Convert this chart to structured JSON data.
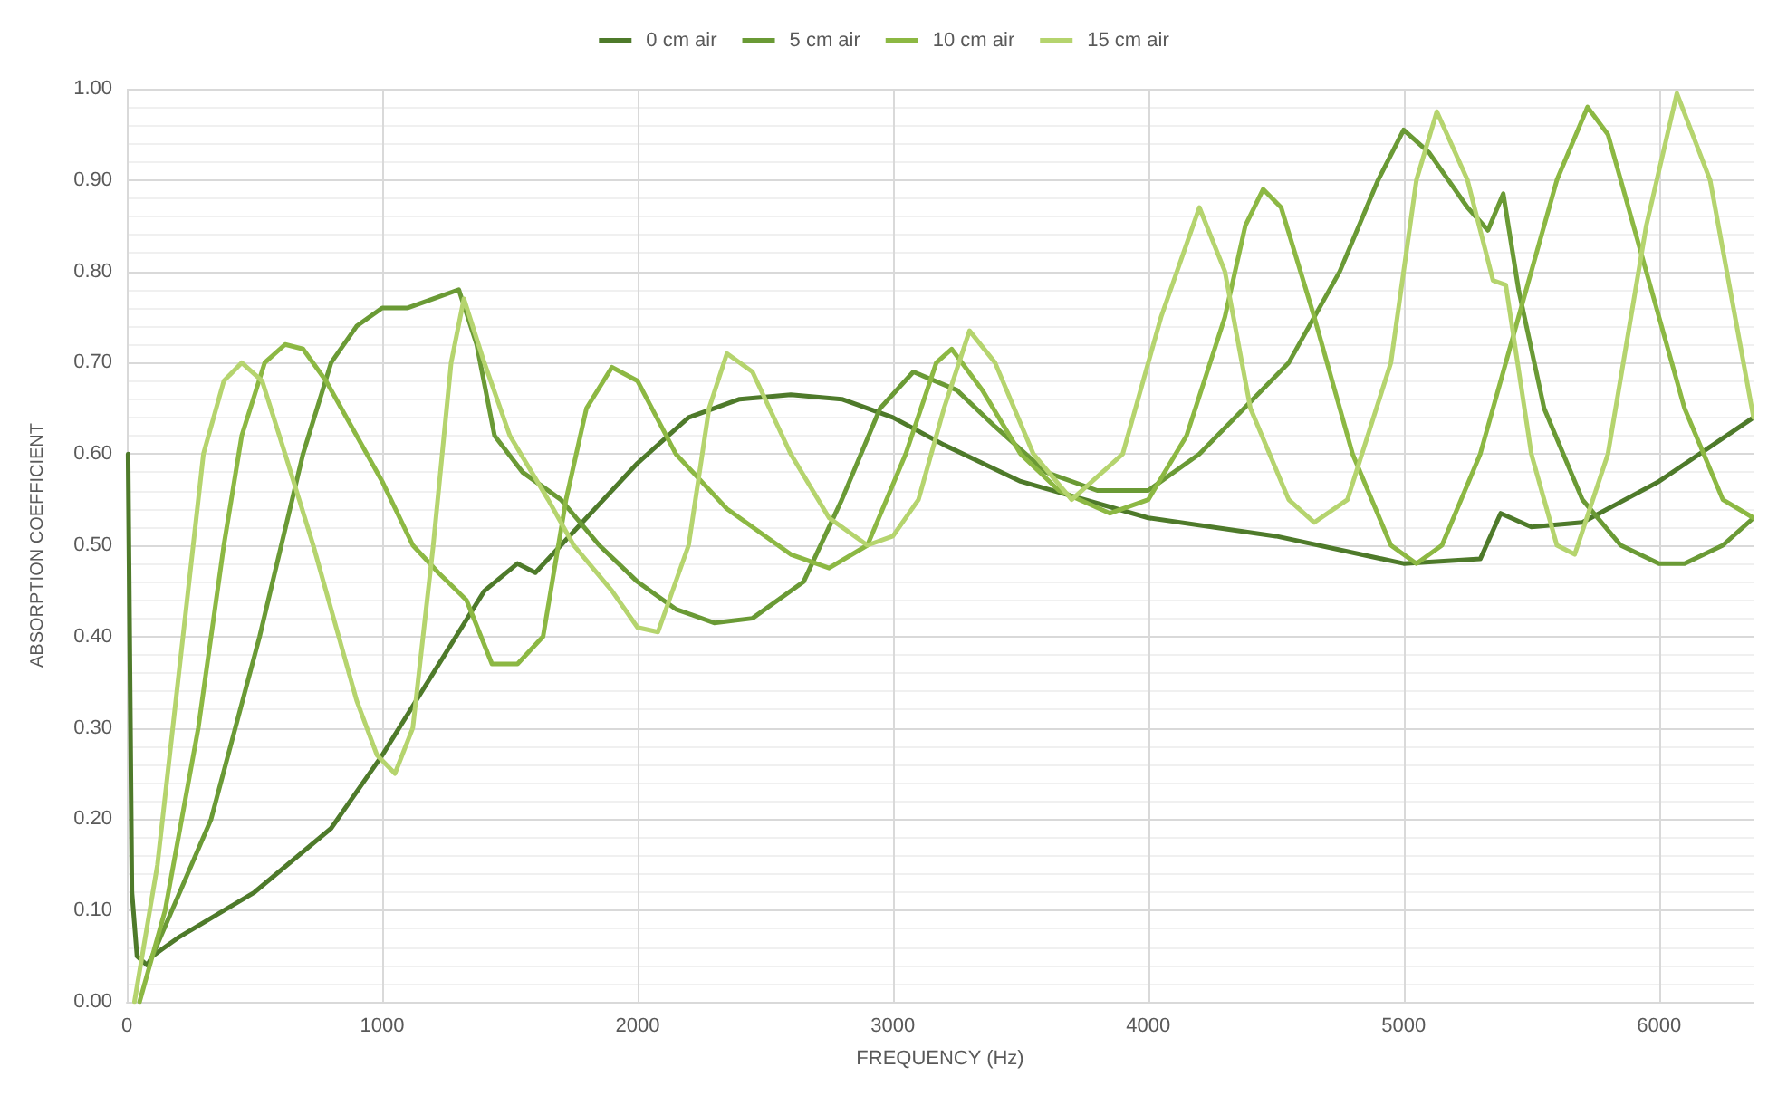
{
  "chart_data": {
    "type": "line",
    "xlabel": "FREQUENCY (Hz)",
    "ylabel": "ABSORPTION COEFFICIENT",
    "xlim": [
      0,
      6370
    ],
    "xticks": [
      0,
      1000,
      2000,
      3000,
      4000,
      5000,
      6000
    ],
    "ylim": [
      0,
      1
    ],
    "yticks": [
      {
        "value": 0,
        "label": "0.00"
      },
      {
        "value": 0.1,
        "label": "0.10"
      },
      {
        "value": 0.2,
        "label": "0.20"
      },
      {
        "value": 0.3,
        "label": "0.30"
      },
      {
        "value": 0.4,
        "label": "0.40"
      },
      {
        "value": 0.5,
        "label": "0.50"
      },
      {
        "value": 0.6,
        "label": "0.60"
      },
      {
        "value": 0.7,
        "label": "0.70"
      },
      {
        "value": 0.8,
        "label": "0.80"
      },
      {
        "value": 0.9,
        "label": "0.90"
      },
      {
        "value": 1,
        "label": "1.00"
      }
    ],
    "grid": true,
    "legend": "top",
    "marker": "none",
    "line_style": "solid",
    "series": [
      {
        "name": "0 cm air",
        "color": "#4e7a2a",
        "x": [
          5,
          20,
          40,
          80,
          100,
          150,
          200,
          500,
          800,
          1000,
          1200,
          1400,
          1530,
          1600,
          1800,
          2000,
          2200,
          2400,
          2600,
          2800,
          3000,
          3200,
          3500,
          4000,
          4500,
          5000,
          5300,
          5380,
          5500,
          5700,
          6000,
          6370
        ],
        "values": [
          0.6,
          0.12,
          0.05,
          0.04,
          0.05,
          0.06,
          0.07,
          0.12,
          0.19,
          0.27,
          0.36,
          0.45,
          0.48,
          0.47,
          0.53,
          0.59,
          0.64,
          0.66,
          0.665,
          0.66,
          0.64,
          0.61,
          0.57,
          0.53,
          0.51,
          0.48,
          0.485,
          0.535,
          0.52,
          0.525,
          0.57,
          0.64
        ]
      },
      {
        "name": "5 cm air",
        "color": "#6a9a35",
        "x": [
          100,
          330,
          520,
          690,
          800,
          900,
          1000,
          1100,
          1200,
          1300,
          1370,
          1440,
          1550,
          1700,
          1850,
          2000,
          2150,
          2300,
          2450,
          2650,
          2800,
          2950,
          3080,
          3250,
          3400,
          3600,
          3800,
          4000,
          4200,
          4550,
          4750,
          4900,
          5000,
          5100,
          5250,
          5330,
          5390,
          5450,
          5550,
          5700,
          5850,
          6000,
          6100,
          6250,
          6370
        ],
        "values": [
          0.05,
          0.2,
          0.4,
          0.6,
          0.7,
          0.74,
          0.76,
          0.76,
          0.77,
          0.78,
          0.72,
          0.62,
          0.58,
          0.55,
          0.5,
          0.46,
          0.43,
          0.415,
          0.42,
          0.46,
          0.55,
          0.65,
          0.69,
          0.67,
          0.63,
          0.58,
          0.56,
          0.56,
          0.6,
          0.7,
          0.8,
          0.9,
          0.955,
          0.93,
          0.87,
          0.845,
          0.885,
          0.78,
          0.65,
          0.55,
          0.5,
          0.48,
          0.48,
          0.5,
          0.53
        ]
      },
      {
        "name": "10 cm air",
        "color": "#8cb843",
        "x": [
          50,
          150,
          280,
          380,
          450,
          540,
          620,
          690,
          780,
          900,
          1000,
          1120,
          1220,
          1330,
          1430,
          1530,
          1630,
          1720,
          1800,
          1900,
          2000,
          2150,
          2350,
          2600,
          2750,
          2900,
          3050,
          3170,
          3230,
          3350,
          3500,
          3650,
          3850,
          4000,
          4150,
          4300,
          4380,
          4450,
          4520,
          4650,
          4800,
          4950,
          5050,
          5150,
          5300,
          5450,
          5600,
          5720,
          5800,
          5950,
          6100,
          6250,
          6370
        ],
        "values": [
          0,
          0.1,
          0.3,
          0.5,
          0.62,
          0.7,
          0.72,
          0.715,
          0.68,
          0.62,
          0.57,
          0.5,
          0.47,
          0.44,
          0.37,
          0.37,
          0.4,
          0.55,
          0.65,
          0.695,
          0.68,
          0.6,
          0.54,
          0.49,
          0.475,
          0.5,
          0.6,
          0.7,
          0.715,
          0.67,
          0.6,
          0.56,
          0.535,
          0.55,
          0.62,
          0.75,
          0.85,
          0.89,
          0.87,
          0.75,
          0.6,
          0.5,
          0.48,
          0.5,
          0.6,
          0.75,
          0.9,
          0.98,
          0.95,
          0.8,
          0.65,
          0.55,
          0.53
        ]
      },
      {
        "name": "15 cm air",
        "color": "#b5d46e",
        "x": [
          30,
          120,
          220,
          300,
          380,
          450,
          530,
          620,
          730,
          830,
          900,
          980,
          1050,
          1120,
          1200,
          1270,
          1320,
          1400,
          1500,
          1650,
          1750,
          1900,
          2000,
          2080,
          2200,
          2280,
          2350,
          2450,
          2600,
          2750,
          2900,
          3000,
          3100,
          3200,
          3300,
          3400,
          3550,
          3700,
          3900,
          4050,
          4200,
          4300,
          4400,
          4550,
          4650,
          4780,
          4950,
          5050,
          5130,
          5250,
          5350,
          5400,
          5500,
          5600,
          5670,
          5800,
          5950,
          6070,
          6200,
          6370
        ],
        "values": [
          0,
          0.15,
          0.4,
          0.6,
          0.68,
          0.7,
          0.68,
          0.6,
          0.5,
          0.4,
          0.33,
          0.27,
          0.25,
          0.3,
          0.5,
          0.7,
          0.77,
          0.7,
          0.62,
          0.55,
          0.5,
          0.45,
          0.41,
          0.405,
          0.5,
          0.65,
          0.71,
          0.69,
          0.6,
          0.53,
          0.5,
          0.51,
          0.55,
          0.65,
          0.735,
          0.7,
          0.6,
          0.55,
          0.6,
          0.75,
          0.87,
          0.8,
          0.65,
          0.55,
          0.525,
          0.55,
          0.7,
          0.9,
          0.975,
          0.9,
          0.79,
          0.785,
          0.6,
          0.5,
          0.49,
          0.6,
          0.85,
          0.995,
          0.9,
          0.64
        ]
      }
    ]
  }
}
